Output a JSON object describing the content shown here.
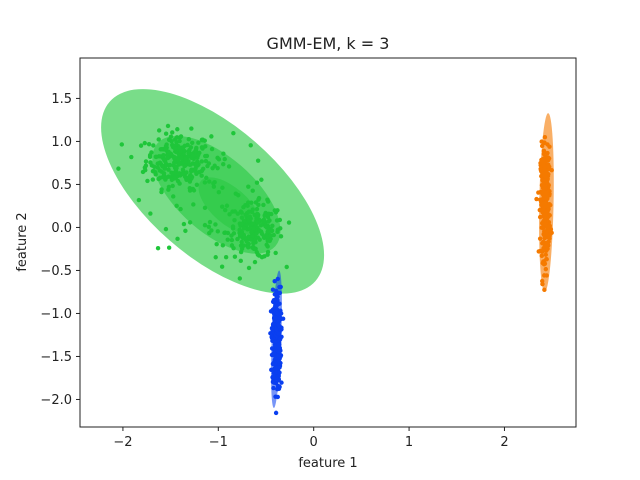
{
  "chart_data": {
    "type": "scatter",
    "title": "GMM-EM, k = 3",
    "xlabel": "feature 1",
    "ylabel": "feature 2",
    "xlim": [
      -2.45,
      2.75
    ],
    "ylim": [
      -2.32,
      1.97
    ],
    "xticks": [
      -2,
      -1,
      0,
      1,
      2
    ],
    "yticks": [
      -2.0,
      -1.5,
      -1.0,
      -0.5,
      0.0,
      0.5,
      1.0,
      1.5
    ],
    "grid": false,
    "legend": "none",
    "series": [
      {
        "color": "#1fc63a",
        "cluster_centers": [
          {
            "x": -1.42,
            "y": 0.78,
            "count": 260,
            "sx": 0.17,
            "sy": 0.16
          },
          {
            "x": -0.62,
            "y": -0.05,
            "count": 200,
            "sx": 0.15,
            "sy": 0.16
          },
          {
            "x": -1.05,
            "y": 0.38,
            "count": 60,
            "sx": 0.35,
            "sy": 0.3
          }
        ],
        "ellipses": [
          {
            "cx": -1.06,
            "cy": 0.42,
            "rx": 1.5,
            "ry": 0.72,
            "angle_deg": -44,
            "opacity": 0.6
          },
          {
            "cx": -1.02,
            "cy": 0.38,
            "rx": 0.86,
            "ry": 0.42,
            "angle_deg": -44,
            "opacity": 0.55
          },
          {
            "cx": -0.88,
            "cy": 0.25,
            "rx": 0.42,
            "ry": 0.2,
            "angle_deg": -44,
            "opacity": 0.45
          }
        ]
      },
      {
        "color": "#0a3ff0",
        "cluster_centers": [
          {
            "x": -0.39,
            "y": -1.3,
            "count": 320,
            "sx": 0.022,
            "sy": 0.3
          }
        ],
        "ellipses": [
          {
            "cx": -0.39,
            "cy": -1.3,
            "rx": 0.8,
            "ry": 0.05,
            "angle_deg": 88,
            "opacity": 0.55
          }
        ]
      },
      {
        "color": "#f57a00",
        "cluster_centers": [
          {
            "x": 2.43,
            "y": 0.28,
            "count": 320,
            "sx": 0.025,
            "sy": 0.32
          }
        ],
        "ellipses": [
          {
            "cx": 2.44,
            "cy": 0.29,
            "rx": 1.04,
            "ry": 0.075,
            "angle_deg": 89,
            "opacity": 0.6
          }
        ]
      }
    ]
  }
}
